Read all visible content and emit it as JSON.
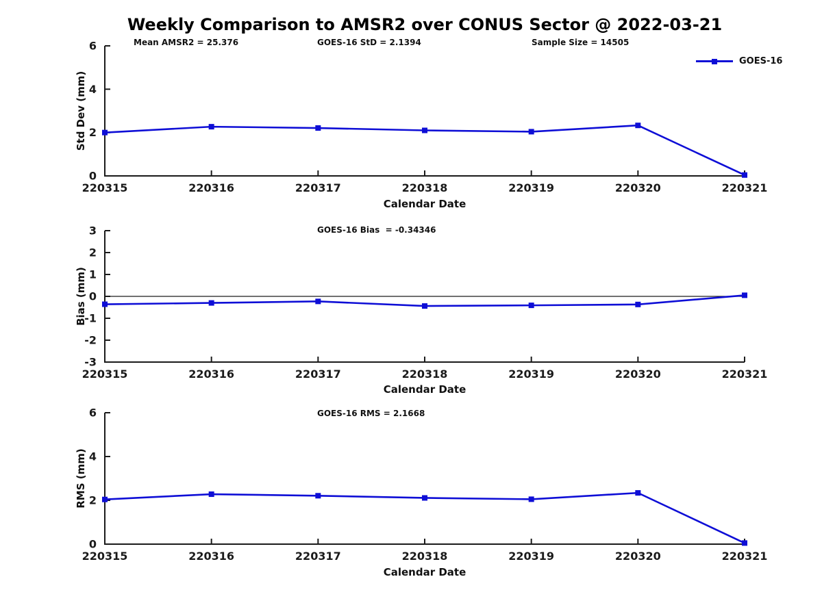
{
  "title": "Weekly Comparison to AMSR2 over CONUS Sector @ 2022-03-21",
  "legend": {
    "label": "GOES-16"
  },
  "colors": {
    "line": "#0e0ed6",
    "axis": "#1a1a1a",
    "zero_line": "#1a1a1a"
  },
  "chart_data": [
    {
      "type": "line",
      "categories": [
        "220315",
        "220316",
        "220317",
        "220318",
        "220319",
        "220320",
        "220321"
      ],
      "series": [
        {
          "name": "GOES-16",
          "values": [
            2.0,
            2.27,
            2.21,
            2.1,
            2.04,
            2.33,
            0.04
          ]
        }
      ],
      "xlabel": "Calendar Date",
      "ylabel": "Std Dev (mm)",
      "ylim": [
        0,
        6
      ],
      "yticks": [
        0,
        2,
        4,
        6
      ],
      "zero_line": false,
      "grid": false,
      "legend_position": "top-right",
      "annotations": [
        "Mean AMSR2 = 25.376",
        "GOES-16 StD = 2.1394",
        "Sample Size = 14505"
      ]
    },
    {
      "type": "line",
      "categories": [
        "220315",
        "220316",
        "220317",
        "220318",
        "220319",
        "220320",
        "220321"
      ],
      "series": [
        {
          "name": "GOES-16",
          "values": [
            -0.36,
            -0.3,
            -0.23,
            -0.44,
            -0.41,
            -0.37,
            0.05
          ]
        }
      ],
      "xlabel": "Calendar Date",
      "ylabel": "Bias (mm)",
      "ylim": [
        -3,
        3
      ],
      "yticks": [
        -3,
        -2,
        -1,
        0,
        1,
        2,
        3
      ],
      "zero_line": true,
      "grid": false,
      "annotations": [
        "GOES-16 Bias  = -0.34346"
      ]
    },
    {
      "type": "line",
      "categories": [
        "220315",
        "220316",
        "220317",
        "220318",
        "220319",
        "220320",
        "220321"
      ],
      "series": [
        {
          "name": "GOES-16",
          "values": [
            2.04,
            2.28,
            2.21,
            2.11,
            2.05,
            2.34,
            0.05
          ]
        }
      ],
      "xlabel": "Calendar Date",
      "ylabel": "RMS (mm)",
      "ylim": [
        0,
        6
      ],
      "yticks": [
        0,
        2,
        4,
        6
      ],
      "zero_line": false,
      "grid": false,
      "annotations": [
        "GOES-16 RMS = 2.1668"
      ]
    }
  ]
}
